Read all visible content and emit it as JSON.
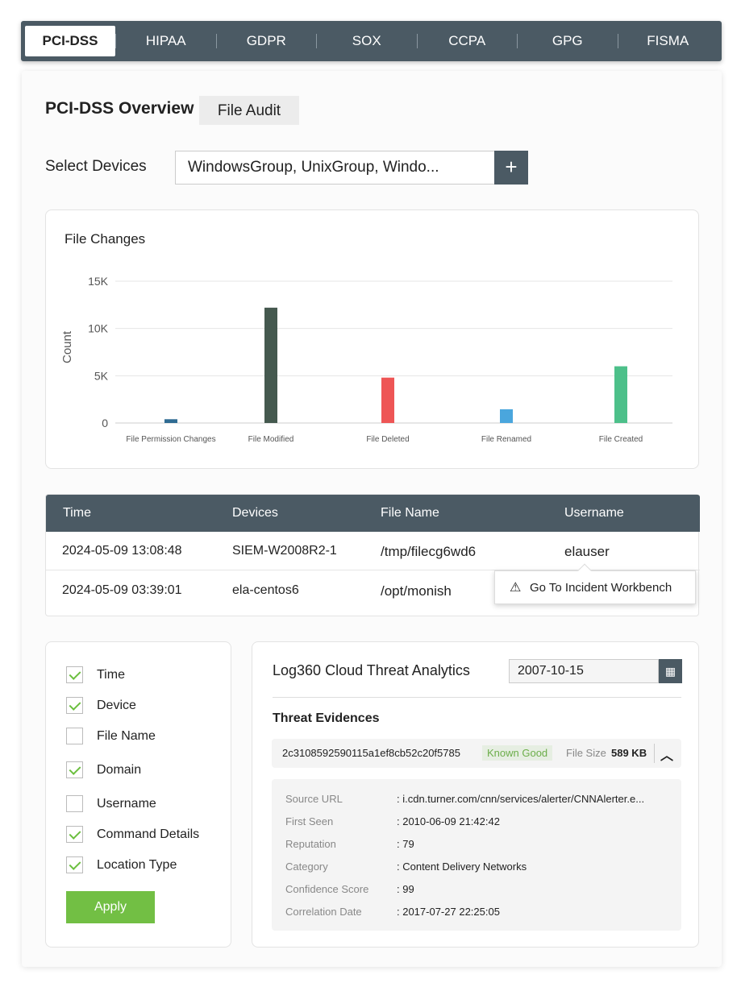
{
  "tabs": [
    "PCI-DSS",
    "HIPAA",
    "GDPR",
    "SOX",
    "CCPA",
    "GPG",
    "FISMA"
  ],
  "overview": {
    "title": "PCI-DSS Overview",
    "sub_tab": "File Audit"
  },
  "devices": {
    "label": "Select Devices",
    "value": "WindowsGroup, UnixGroup, Windo...",
    "add": "+"
  },
  "chart_data": {
    "type": "bar",
    "title": "File Changes",
    "ylabel": "Count",
    "xlabel": "",
    "ylim": [
      0,
      15000
    ],
    "yticks": [
      "0",
      "5K",
      "10K",
      "15K"
    ],
    "grid": true,
    "categories": [
      "File Permission Changes",
      "File Modified",
      "File Deleted",
      "File Renamed",
      "File Created"
    ],
    "values": [
      400,
      12200,
      4800,
      1450,
      6000
    ],
    "colors": [
      "#2f6b92",
      "#45594f",
      "#ee5555",
      "#4aa6dd",
      "#4dc08a"
    ]
  },
  "table": {
    "headers": [
      "Time",
      "Devices",
      "File Name",
      "Username"
    ],
    "rows": [
      [
        "2024-05-09 13:08:48",
        "SIEM-W2008R2-1",
        "/tmp/filecg6wd6",
        "elauser"
      ],
      [
        "2024-05-09 03:39:01",
        "ela-centos6",
        "/opt/monish",
        ""
      ]
    ],
    "popup": "Go To Incident Workbench"
  },
  "columns": {
    "items": [
      {
        "label": "Time",
        "checked": true
      },
      {
        "label": "Device",
        "checked": true
      },
      {
        "label": "File Name",
        "checked": false
      },
      {
        "label": "Domain",
        "checked": true
      },
      {
        "label": "Username",
        "checked": false
      },
      {
        "label": "Command Details",
        "checked": true
      },
      {
        "label": "Location Type",
        "checked": true
      }
    ],
    "apply": "Apply"
  },
  "threat": {
    "title": "Log360 Cloud Threat Analytics",
    "date": "2007-10-15",
    "section": "Threat Evidences",
    "hash": "2c3108592590115a1ef8cb52c20f5785",
    "badge": "Known Good",
    "size_label": "File Size",
    "size": "589 KB",
    "details": [
      {
        "k": "Source URL",
        "v": ": i.cdn.turner.com/cnn/services/alerter/CNNAlerter.e..."
      },
      {
        "k": "First Seen",
        "v": ": 2010-06-09 21:42:42"
      },
      {
        "k": "Reputation",
        "v": ": 79"
      },
      {
        "k": "Category",
        "v": ": Content Delivery Networks"
      },
      {
        "k": "Confidence Score",
        "v": ": 99"
      },
      {
        "k": "Correlation Date",
        "v": ": 2017-07-27 22:25:05"
      }
    ]
  }
}
